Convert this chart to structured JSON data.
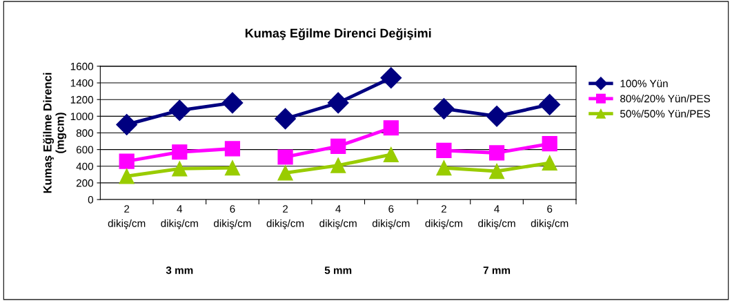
{
  "chart_data": {
    "type": "line",
    "title": "Kumaş Eğilme Direnci Değişimi",
    "ylabel": "Kumaş Eğilme Direnci\n(mgcm)",
    "categories": [
      "2\ndikiş/cm",
      "4\ndikiş/cm",
      "6\ndikiş/cm",
      "2\ndikiş/cm",
      "4\ndikiş/cm",
      "6\ndikiş/cm",
      "2\ndikiş/cm",
      "4\ndikiş/cm",
      "6\ndikiş/cm"
    ],
    "annotations": [
      "3 mm",
      "5 mm",
      "7 mm"
    ],
    "series": [
      {
        "name": "100% Yün",
        "color": "#000080",
        "marker": "diamond",
        "values": [
          900,
          1070,
          1160,
          970,
          1160,
          1460,
          1090,
          1000,
          1140
        ]
      },
      {
        "name": "80%/20% Yün/PES",
        "color": "#ff00ff",
        "marker": "square",
        "values": [
          460,
          570,
          610,
          510,
          640,
          860,
          590,
          560,
          670
        ]
      },
      {
        "name": "50%/50% Yün/PES",
        "color": "#99cc00",
        "marker": "triangle",
        "values": [
          280,
          370,
          380,
          320,
          410,
          540,
          380,
          340,
          440
        ]
      }
    ],
    "ylim": [
      0,
      1600
    ],
    "yticks": [
      0,
      200,
      400,
      600,
      800,
      1000,
      1200,
      1400,
      1600
    ],
    "grid": "y",
    "legend": "right"
  }
}
